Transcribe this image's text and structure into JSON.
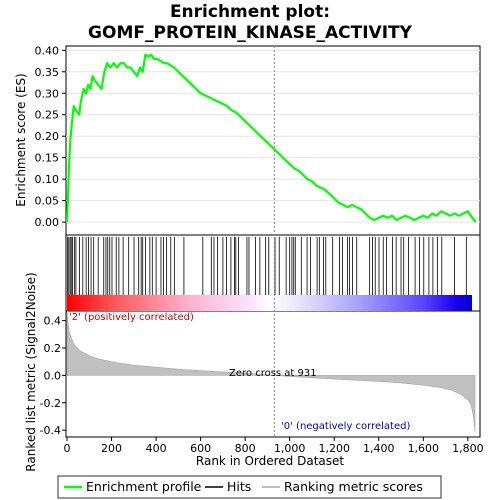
{
  "chart_data": {
    "type": "line",
    "title_lines": [
      "Enrichment plot:",
      "GOMF_PROTEIN_KINASE_ACTIVITY"
    ],
    "panels": {
      "enrichment": {
        "ylabel": "Enrichment score (ES)",
        "ylim": [
          -0.03,
          0.41
        ],
        "yticks": [
          "0.00",
          "0.05",
          "0.10",
          "0.15",
          "0.20",
          "0.25",
          "0.30",
          "0.35",
          "0.40"
        ],
        "series": [
          {
            "name": "Enrichment profile",
            "color": "#00ff00",
            "x": [
              0,
              5,
              10,
              15,
              22,
              30,
              40,
              55,
              62,
              75,
              85,
              95,
              105,
              115,
              125,
              140,
              155,
              168,
              180,
              195,
              210,
              225,
              240,
              255,
              270,
              285,
              300,
              315,
              328,
              340,
              352,
              365,
              378,
              390,
              405,
              420,
              435,
              450,
              465,
              480,
              500,
              520,
              540,
              560,
              580,
              600,
              620,
              640,
              660,
              680,
              700,
              720,
              740,
              760,
              780,
              800,
              820,
              840,
              860,
              880,
              900,
              920,
              940,
              960,
              980,
              1000,
              1020,
              1040,
              1060,
              1080,
              1100,
              1120,
              1140,
              1160,
              1180,
              1200,
              1220,
              1240,
              1260,
              1280,
              1300,
              1320,
              1340,
              1360,
              1380,
              1400,
              1420,
              1440,
              1460,
              1480,
              1500,
              1520,
              1540,
              1560,
              1580,
              1600,
              1620,
              1640,
              1660,
              1680,
              1700,
              1720,
              1740,
              1760,
              1780,
              1800,
              1820,
              1835
            ],
            "y": [
              0.0,
              0.07,
              0.14,
              0.19,
              0.23,
              0.27,
              0.26,
              0.25,
              0.28,
              0.31,
              0.3,
              0.32,
              0.31,
              0.34,
              0.33,
              0.32,
              0.31,
              0.35,
              0.37,
              0.36,
              0.37,
              0.36,
              0.37,
              0.37,
              0.36,
              0.36,
              0.35,
              0.34,
              0.36,
              0.35,
              0.39,
              0.385,
              0.39,
              0.38,
              0.38,
              0.375,
              0.37,
              0.37,
              0.365,
              0.36,
              0.35,
              0.34,
              0.33,
              0.32,
              0.31,
              0.3,
              0.295,
              0.29,
              0.285,
              0.28,
              0.275,
              0.27,
              0.26,
              0.255,
              0.245,
              0.235,
              0.225,
              0.215,
              0.205,
              0.195,
              0.185,
              0.175,
              0.165,
              0.155,
              0.145,
              0.135,
              0.125,
              0.12,
              0.11,
              0.1,
              0.095,
              0.085,
              0.08,
              0.075,
              0.065,
              0.055,
              0.045,
              0.04,
              0.035,
              0.04,
              0.035,
              0.03,
              0.02,
              0.01,
              0.005,
              0.01,
              0.015,
              0.01,
              0.015,
              0.005,
              0.01,
              0.015,
              0.01,
              0.005,
              0.01,
              0.015,
              0.01,
              0.02,
              0.015,
              0.025,
              0.02,
              0.015,
              0.02,
              0.015,
              0.02,
              0.025,
              0.01,
              0.0
            ]
          }
        ]
      },
      "hits": {
        "series_name": "Hits",
        "positions": [
          3,
          8,
          14,
          19,
          25,
          33,
          40,
          56,
          71,
          86,
          97,
          108,
          120,
          140,
          165,
          175,
          183,
          192,
          202,
          221,
          233,
          252,
          277,
          301,
          322,
          333,
          340,
          352,
          372,
          383,
          400,
          422,
          433,
          447,
          466,
          482,
          525,
          610,
          648,
          660,
          676,
          700,
          716,
          736,
          752,
          758,
          770,
          808,
          817,
          846,
          866,
          892,
          906,
          934,
          953,
          984,
          1000,
          1010,
          1018,
          1025,
          1052,
          1078,
          1093,
          1123,
          1133,
          1152,
          1162,
          1193,
          1224,
          1237,
          1259,
          1269,
          1282,
          1301,
          1359,
          1372,
          1384,
          1401,
          1420,
          1435,
          1461,
          1478,
          1500,
          1512,
          1533,
          1563,
          1583,
          1602,
          1625,
          1643,
          1663,
          1683,
          1740,
          1793
        ]
      },
      "ranking": {
        "series_name": "Ranking metric scores",
        "ylabel": "Ranked list metric (Signal2Noise)",
        "xlabel": "Rank in Ordered Dataset",
        "ylim": [
          -0.45,
          0.47
        ],
        "yticks": [
          "-0.4",
          "-0.2",
          "0.0",
          "0.2",
          "0.4"
        ],
        "xlim": [
          0,
          1850
        ],
        "xticks": [
          "0",
          "200",
          "400",
          "600",
          "800",
          "1,000",
          "1,200",
          "1,400",
          "1,600",
          "1,800"
        ],
        "zero_cross_label": "Zero cross at 931",
        "zero_cross_rank": 931,
        "pos_label": "'2' (positively correlated)",
        "neg_label": "'0' (negatively correlated)",
        "profile": {
          "x": [
            0,
            5,
            10,
            20,
            30,
            50,
            80,
            120,
            170,
            230,
            300,
            400,
            500,
            600,
            700,
            800,
            900,
            931,
            1000,
            1100,
            1200,
            1300,
            1400,
            1500,
            1600,
            1680,
            1730,
            1770,
            1800,
            1815,
            1825,
            1832
          ],
          "y": [
            0.47,
            0.38,
            0.32,
            0.27,
            0.23,
            0.19,
            0.16,
            0.13,
            0.11,
            0.09,
            0.075,
            0.06,
            0.045,
            0.035,
            0.025,
            0.015,
            0.005,
            0.0,
            -0.008,
            -0.018,
            -0.027,
            -0.036,
            -0.045,
            -0.056,
            -0.072,
            -0.09,
            -0.11,
            -0.14,
            -0.18,
            -0.22,
            -0.3,
            -0.41
          ]
        }
      }
    },
    "legend": {
      "placement": "bottom",
      "entries": [
        {
          "label": "Enrichment profile",
          "color": "#00ff00"
        },
        {
          "label": "Hits",
          "color": "#000000"
        },
        {
          "label": "Ranking metric scores",
          "color": "#c0c0c0"
        }
      ]
    },
    "colors": {
      "positive": "#ff0000",
      "neutral": "#ffffff",
      "negative": "#0000ff",
      "accent": "#00ff00"
    }
  }
}
